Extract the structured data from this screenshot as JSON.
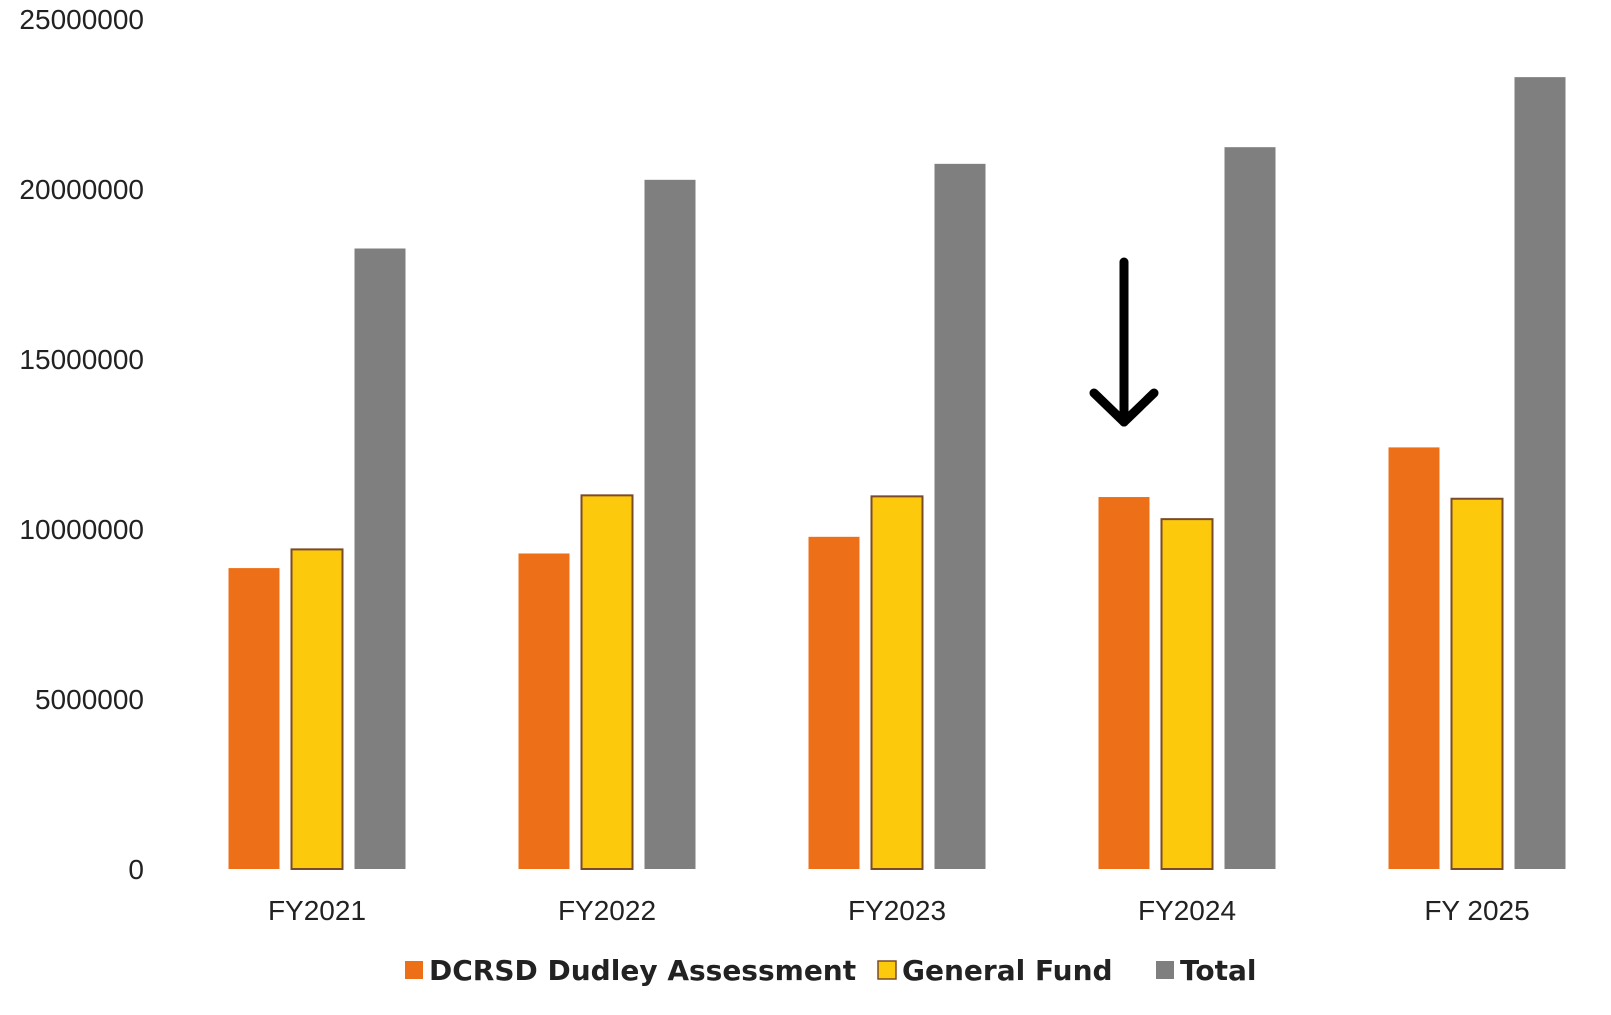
{
  "chart_data": {
    "type": "bar",
    "categories": [
      "FY2021",
      "FY2022",
      "FY2023",
      "FY2024",
      "FY 2025"
    ],
    "series": [
      {
        "name": "DCRSD Dudley Assessment",
        "color": "#ED7018",
        "values": [
          8850000,
          9280000,
          9770000,
          10940000,
          12400000
        ]
      },
      {
        "name": "General Fund",
        "color": "#FDC90C",
        "values": [
          9400000,
          10990000,
          10960000,
          10290000,
          10890000
        ]
      },
      {
        "name": "Total",
        "color": "#7F7F7F",
        "values": [
          18250000,
          20270000,
          20740000,
          21230000,
          23290000
        ]
      }
    ],
    "yticks": [
      "0",
      "5000000",
      "10000000",
      "15000000",
      "20000000",
      "25000000"
    ],
    "ylim": [
      0,
      25000000
    ],
    "title": "",
    "xlabel": "",
    "ylabel": "",
    "grid": false,
    "legend_position": "bottom",
    "annotation": {
      "type": "down-arrow",
      "category": "FY2024",
      "series": "DCRSD Dudley Assessment"
    }
  }
}
